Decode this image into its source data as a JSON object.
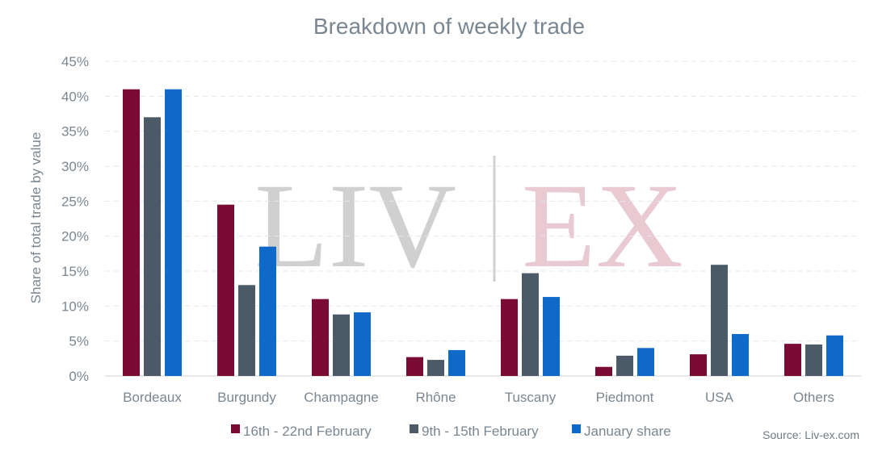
{
  "chart_data": {
    "type": "bar",
    "title": "Breakdown of weekly trade",
    "ylabel": "Share of total trade by value",
    "xlabel": "",
    "ylim": [
      0,
      45
    ],
    "yticks": [
      "0%",
      "5%",
      "10%",
      "15%",
      "20%",
      "25%",
      "30%",
      "35%",
      "40%",
      "45%"
    ],
    "ytick_values": [
      0,
      5,
      10,
      15,
      20,
      25,
      30,
      35,
      40,
      45
    ],
    "grid": true,
    "legend_position": "bottom",
    "categories": [
      "Bordeaux",
      "Burgundy",
      "Champagne",
      "Rhône",
      "Tuscany",
      "Piedmont",
      "USA",
      "Others"
    ],
    "series": [
      {
        "name": "16th - 22nd February",
        "color": "#7a0b34",
        "values": [
          41.0,
          24.5,
          11.0,
          2.7,
          11.0,
          1.3,
          3.1,
          4.6
        ]
      },
      {
        "name": "9th - 15th February",
        "color": "#4b5a66",
        "values": [
          37.0,
          13.0,
          8.8,
          2.3,
          14.7,
          2.9,
          15.9,
          4.5
        ]
      },
      {
        "name": "January share",
        "color": "#0f69c9",
        "values": [
          41.0,
          18.5,
          9.1,
          3.7,
          11.3,
          4.0,
          6.0,
          5.8
        ]
      }
    ]
  },
  "source": "Source: Liv-ex.com",
  "watermark": {
    "left_text": "LIV",
    "right_text": "EX",
    "left_color": "#d0d0d0",
    "right_color": "#e9c9d2",
    "divider_color": "#d0d0d0"
  }
}
